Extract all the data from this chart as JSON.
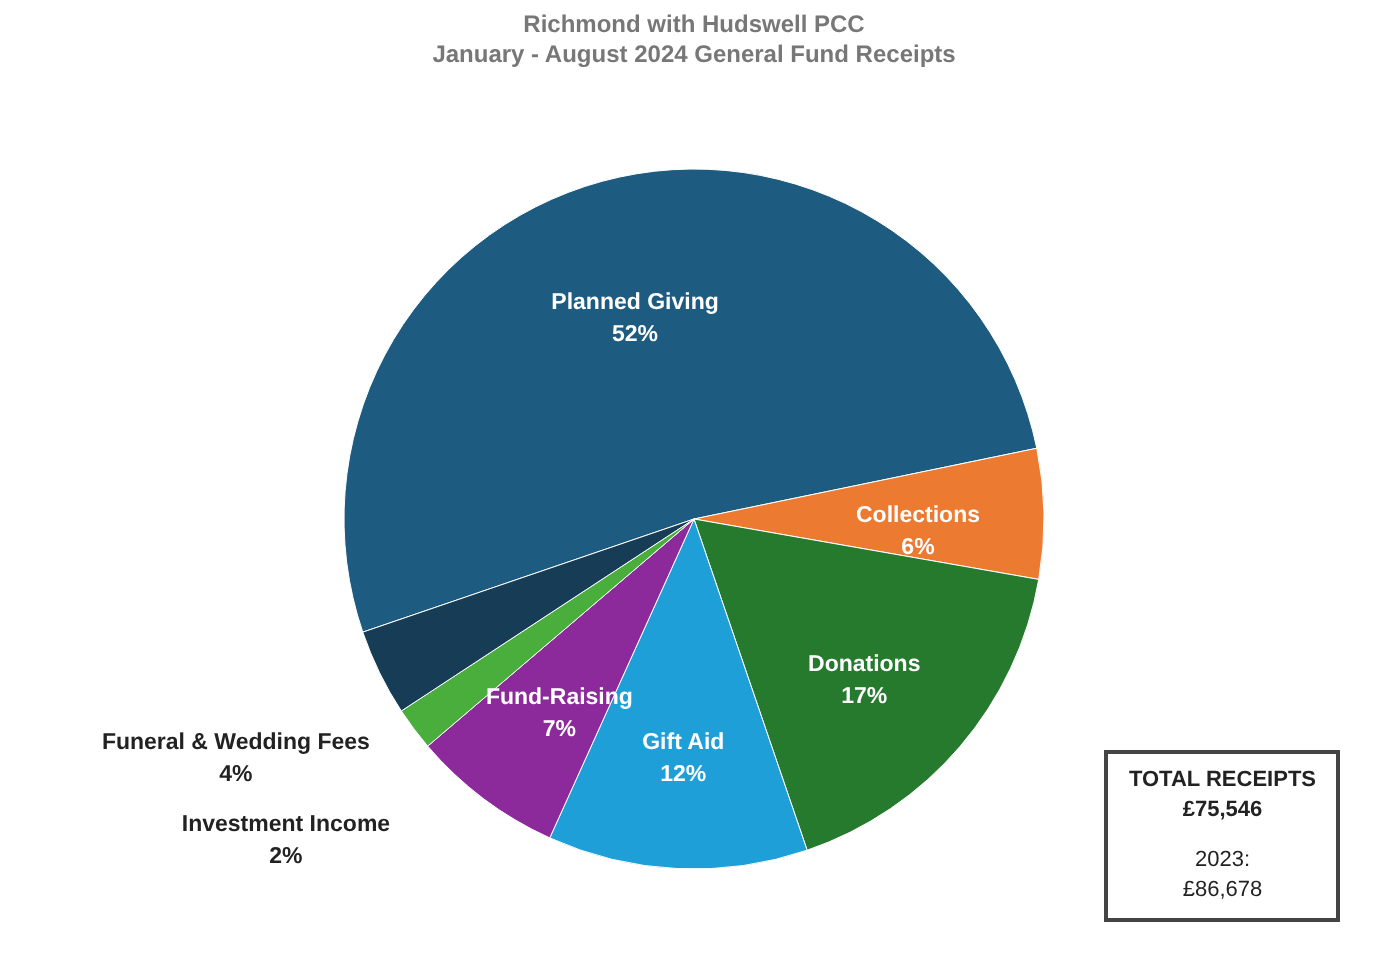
{
  "chart_data": {
    "type": "pie",
    "title": "Richmond with Hudswell PCC",
    "subtitle": "January - August 2024   General Fund Receipts",
    "categories": [
      "Planned Giving",
      "Collections",
      "Donations",
      "Gift Aid",
      "Fund-Raising",
      "Investment Income",
      "Funeral & Wedding Fees"
    ],
    "values": [
      52,
      6,
      17,
      12,
      7,
      2,
      4
    ],
    "value_labels": [
      "52%",
      "6%",
      "17%",
      "12%",
      "7%",
      "2%",
      "4%"
    ],
    "colors": [
      "#1d5b80",
      "#ec7a30",
      "#267a2e",
      "#1e9fd8",
      "#8c2a9c",
      "#4aae3c",
      "#163d55"
    ],
    "annotations": [
      "TOTAL RECEIPTS",
      "£75,546",
      "2023:",
      "£86,678"
    ]
  }
}
